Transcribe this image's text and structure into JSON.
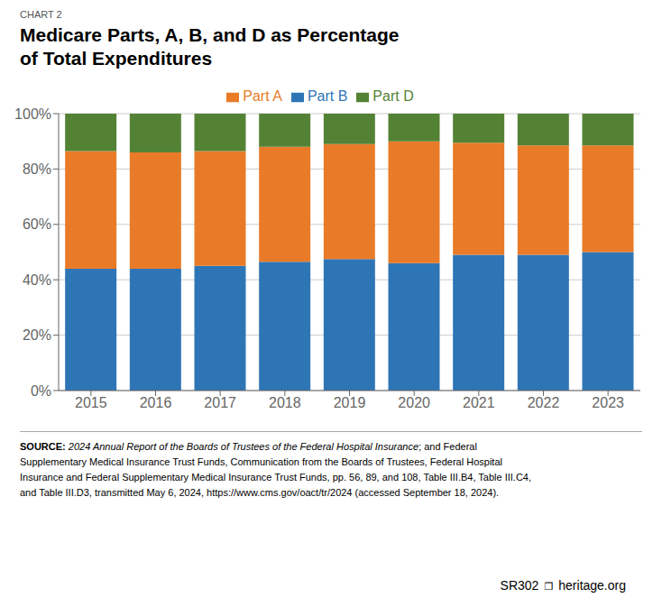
{
  "chart_data": {
    "type": "bar",
    "stacked": true,
    "title": "Medicare Parts, A, B, and D as Percentage\nof Total Expenditures",
    "categories": [
      "2015",
      "2016",
      "2017",
      "2018",
      "2019",
      "2020",
      "2021",
      "2022",
      "2023"
    ],
    "series": [
      {
        "name": "Part B",
        "color": "#2E75B6",
        "values": [
          44.0,
          44.0,
          45.0,
          46.5,
          47.5,
          46.0,
          49.0,
          49.0,
          50.0
        ]
      },
      {
        "name": "Part A",
        "color": "#E97B28",
        "values": [
          42.5,
          42.0,
          41.5,
          41.5,
          41.5,
          44.0,
          40.5,
          39.5,
          38.5
        ]
      },
      {
        "name": "Part D",
        "color": "#548235",
        "values": [
          13.5,
          14.0,
          13.5,
          12.0,
          11.0,
          10.0,
          10.5,
          11.5,
          11.5
        ]
      }
    ],
    "ylim": [
      0,
      100
    ],
    "yticks": [
      {
        "value": 0,
        "label": "0%"
      },
      {
        "value": 20,
        "label": "20%"
      },
      {
        "value": 40,
        "label": "40%"
      },
      {
        "value": 60,
        "label": "60%"
      },
      {
        "value": 80,
        "label": "80%"
      },
      {
        "value": 100,
        "label": "100%"
      }
    ],
    "grid": true,
    "legend": "top",
    "annotations": [
      "CHART 2",
      "SOURCE:",
      " 2024 Annual Report of the Boards of Trustees of the Federal Hospital Insurance",
      "; and Federal",
      "Supplementary Medical Insurance Trust Funds, Communication from the Boards of Trustees, Federal Hospital",
      "Insurance and Federal Supplementary Medical Insurance Trust Funds, pp. 56, 89, and 108, Table III.B4, Table III.C4,",
      "and Table III.D3, transmitted May 6, 2024, https://www.cms.gov/oact/tr/2024 (accessed September 18, 2024).",
      "SR302",
      "❐",
      "heritage.org"
    ]
  }
}
